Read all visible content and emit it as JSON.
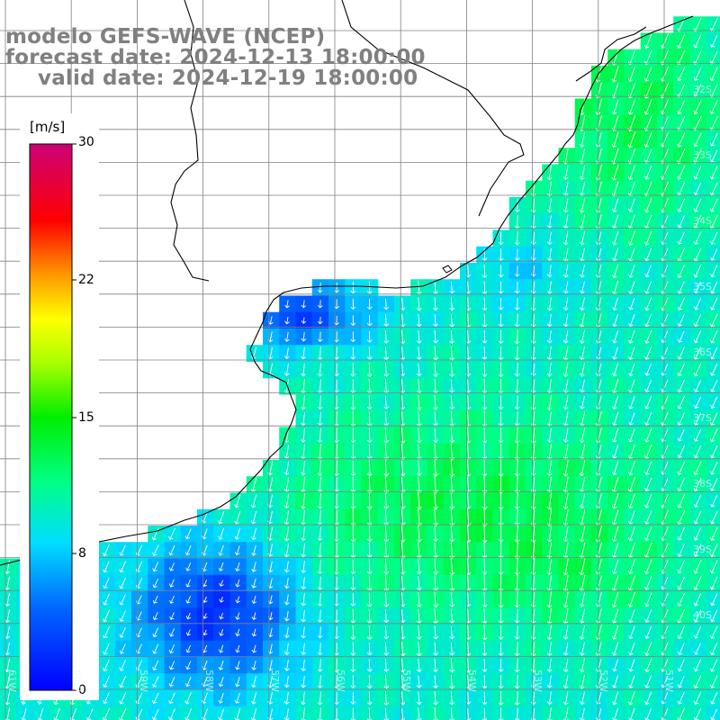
{
  "title": {
    "line1": "modelo GEFS-WAVE (NCEP)",
    "line2": "forecast date: 2024-12-13 18:00:00",
    "line3": "valid date: 2024-12-19 18:00:00"
  },
  "colorbar": {
    "unit": "[m/s]",
    "ticks": [
      "30",
      "22",
      "15",
      "8",
      "0"
    ],
    "range": [
      0,
      30
    ],
    "colors": [
      "#0000ff",
      "#00aaff",
      "#00ffff",
      "#00ff00",
      "#ffff00",
      "#ff8000",
      "#ff0000",
      "#c00080"
    ]
  },
  "grid": {
    "lat_labels": [
      "32S",
      "33S",
      "34S",
      "35S",
      "36S",
      "37S",
      "38S",
      "39S",
      "40S"
    ],
    "lon_labels": [
      "61W",
      "60W",
      "59W",
      "58W",
      "57W",
      "56W",
      "55W",
      "54W",
      "53W",
      "52W",
      "51W"
    ]
  },
  "colors": {
    "land": "#ffffff",
    "coastline": "#000000",
    "gridline": "#808080",
    "arrow": "#ffffff",
    "title_text": "#808080"
  },
  "map": {
    "variable": "wind speed",
    "unit": "m/s",
    "region": "Rio de la Plata / Uruguay coast",
    "arrow_direction": "toward south-southwest"
  }
}
